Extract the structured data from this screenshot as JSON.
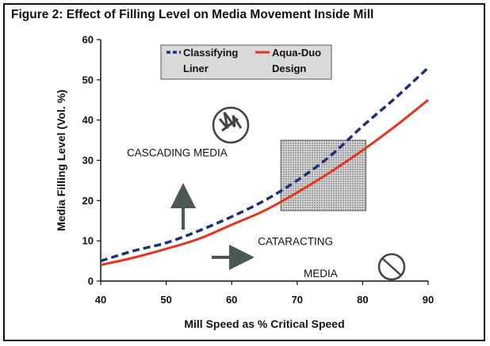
{
  "figure": {
    "title": "Figure 2: Effect of Filling Level on Media Movement Inside Mill"
  },
  "chart_data": {
    "type": "line",
    "xlabel": "Mill Speed as % Critical Speed",
    "ylabel": "Media Filling Level (Vol. %)",
    "xlim": [
      40,
      90
    ],
    "ylim": [
      0,
      60
    ],
    "x_ticks": [
      40,
      50,
      60,
      70,
      80,
      90
    ],
    "y_ticks": [
      0,
      10,
      20,
      30,
      40,
      50,
      60
    ],
    "grid": false,
    "legend_position": "top-center",
    "x": [
      40,
      45,
      50,
      55,
      60,
      65,
      70,
      75,
      80,
      85,
      90
    ],
    "series": [
      {
        "name": "Classifying Liner",
        "style": "dashed",
        "color": "#1f2f7a",
        "values": [
          5,
          7.5,
          9.5,
          12.5,
          16,
          20,
          25,
          31,
          38.5,
          45.5,
          53
        ]
      },
      {
        "name": "Aqua-Duo Design",
        "style": "solid",
        "color": "#e8321e",
        "values": [
          4,
          5.8,
          8,
          10.5,
          14,
          17.5,
          22,
          27,
          32.5,
          38.5,
          45
        ]
      }
    ],
    "annotations": [
      {
        "text": "CASCADING MEDIA",
        "x": 44,
        "y": 31
      },
      {
        "text": "CATARACTING",
        "x": 64,
        "y": 9
      },
      {
        "text": "MEDIA",
        "x": 71,
        "y": 1
      }
    ],
    "highlight_region": {
      "x": [
        67.5,
        80.5
      ],
      "y": [
        17.5,
        35
      ]
    }
  }
}
